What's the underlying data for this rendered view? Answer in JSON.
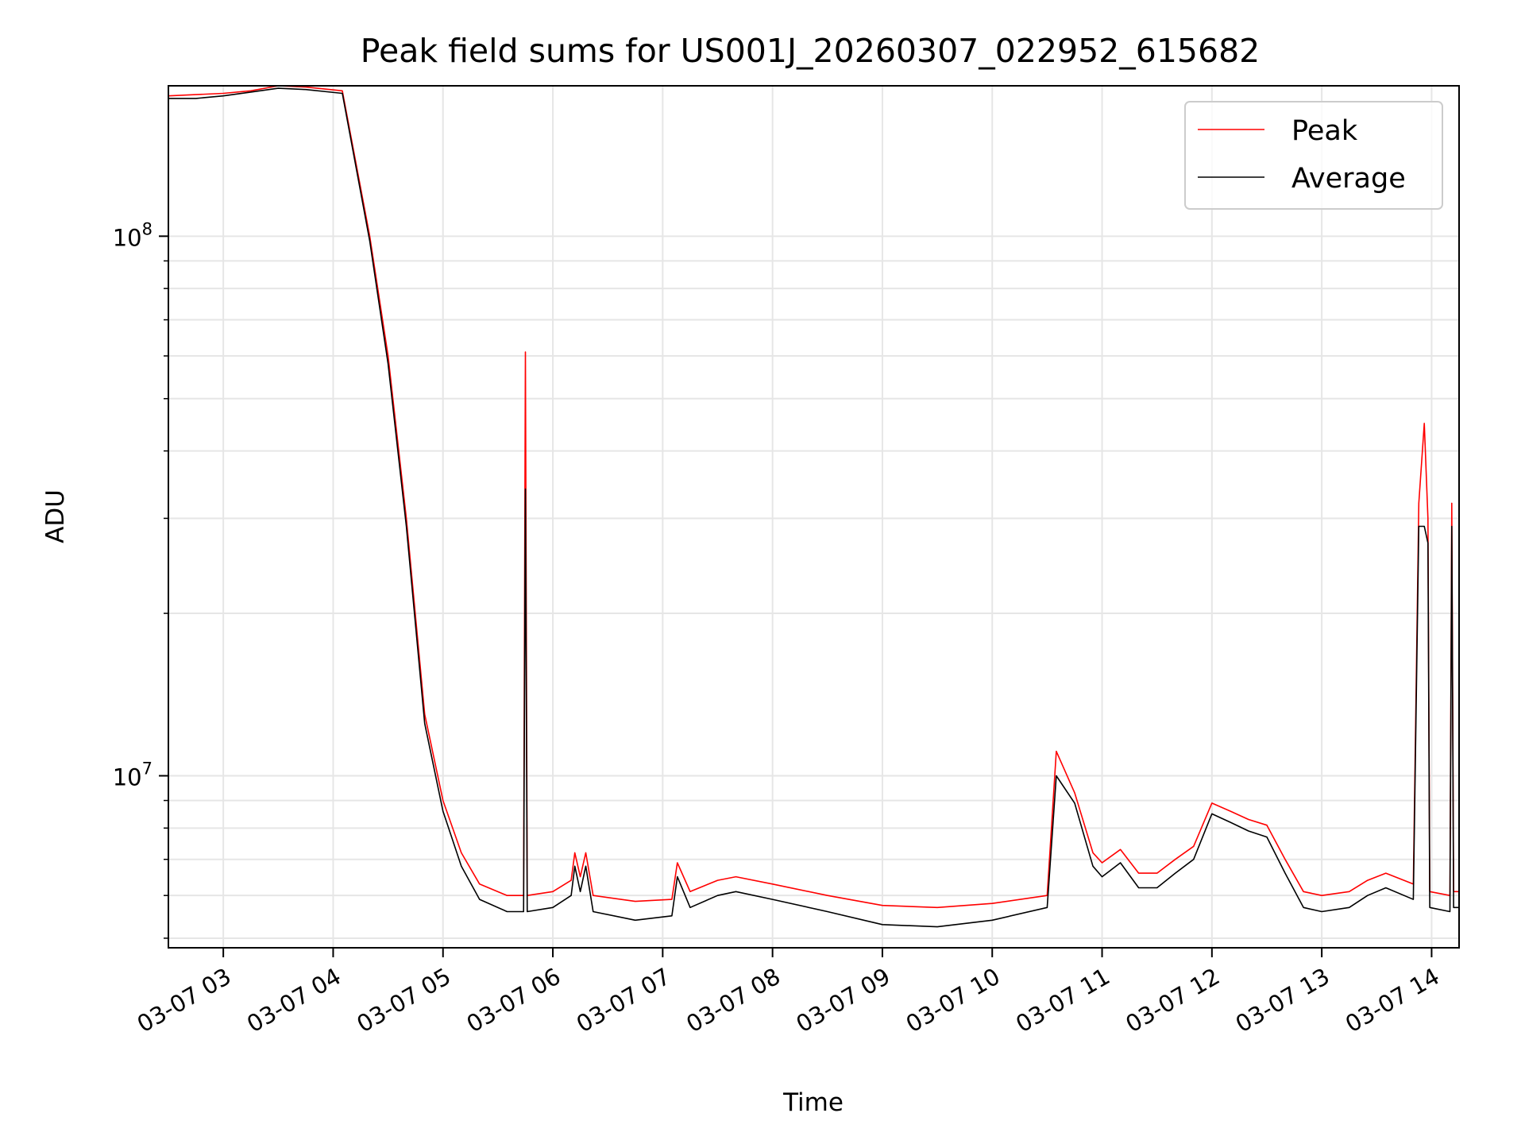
{
  "chart_data": {
    "type": "line",
    "title": "Peak field sums for US001J_20260307_022952_615682",
    "xlabel": "Time",
    "ylabel": "ADU",
    "yscale": "log",
    "xlim": [
      "2026-03-07T02:30",
      "2026-03-07T14:15"
    ],
    "ylim": [
      4800000,
      190000000
    ],
    "x_tick_labels": [
      "03-07 03",
      "03-07 04",
      "03-07 05",
      "03-07 06",
      "03-07 07",
      "03-07 08",
      "03-07 09",
      "03-07 10",
      "03-07 11",
      "03-07 12",
      "03-07 13",
      "03-07 14"
    ],
    "x_tick_values": [
      "2026-03-07T03:00",
      "2026-03-07T04:00",
      "2026-03-07T05:00",
      "2026-03-07T06:00",
      "2026-03-07T07:00",
      "2026-03-07T08:00",
      "2026-03-07T09:00",
      "2026-03-07T10:00",
      "2026-03-07T11:00",
      "2026-03-07T12:00",
      "2026-03-07T13:00",
      "2026-03-07T14:00"
    ],
    "y_major_ticks": [
      {
        "value": 10000000,
        "base": "10",
        "exp": "7"
      },
      {
        "value": 100000000,
        "base": "10",
        "exp": "8"
      }
    ],
    "grid": true,
    "legend_position": "upper right",
    "series": [
      {
        "name": "Peak",
        "color": "#ff0000",
        "points": [
          [
            "2026-03-07T02:30",
            182000000.0
          ],
          [
            "2026-03-07T02:45",
            183000000.0
          ],
          [
            "2026-03-07T03:00",
            184000000.0
          ],
          [
            "2026-03-07T03:15",
            186000000.0
          ],
          [
            "2026-03-07T03:30",
            190000000.0
          ],
          [
            "2026-03-07T03:45",
            189000000.0
          ],
          [
            "2026-03-07T04:05",
            186000000.0
          ],
          [
            "2026-03-07T04:20",
            100000000.0
          ],
          [
            "2026-03-07T04:30",
            60000000.0
          ],
          [
            "2026-03-07T04:40",
            30000000.0
          ],
          [
            "2026-03-07T04:50",
            13000000.0
          ],
          [
            "2026-03-07T05:00",
            9000000.0
          ],
          [
            "2026-03-07T05:10",
            7200000.0
          ],
          [
            "2026-03-07T05:20",
            6300000.0
          ],
          [
            "2026-03-07T05:35",
            6000000.0
          ],
          [
            "2026-03-07T05:44",
            6000000.0
          ],
          [
            "2026-03-07T05:45",
            61000000.0
          ],
          [
            "2026-03-07T05:46",
            6000000.0
          ],
          [
            "2026-03-07T06:00",
            6100000.0
          ],
          [
            "2026-03-07T06:10",
            6400000.0
          ],
          [
            "2026-03-07T06:12",
            7200000.0
          ],
          [
            "2026-03-07T06:15",
            6500000.0
          ],
          [
            "2026-03-07T06:18",
            7200000.0
          ],
          [
            "2026-03-07T06:22",
            6000000.0
          ],
          [
            "2026-03-07T06:45",
            5850000.0
          ],
          [
            "2026-03-07T07:05",
            5900000.0
          ],
          [
            "2026-03-07T07:08",
            6900000.0
          ],
          [
            "2026-03-07T07:15",
            6100000.0
          ],
          [
            "2026-03-07T07:30",
            6400000.0
          ],
          [
            "2026-03-07T07:40",
            6500000.0
          ],
          [
            "2026-03-07T08:00",
            6300000.0
          ],
          [
            "2026-03-07T08:30",
            6000000.0
          ],
          [
            "2026-03-07T09:00",
            5750000.0
          ],
          [
            "2026-03-07T09:30",
            5700000.0
          ],
          [
            "2026-03-07T10:00",
            5800000.0
          ],
          [
            "2026-03-07T10:30",
            6000000.0
          ],
          [
            "2026-03-07T10:35",
            11100000.0
          ],
          [
            "2026-03-07T10:45",
            9300000.0
          ],
          [
            "2026-03-07T10:55",
            7200000.0
          ],
          [
            "2026-03-07T11:00",
            6900000.0
          ],
          [
            "2026-03-07T11:10",
            7300000.0
          ],
          [
            "2026-03-07T11:20",
            6600000.0
          ],
          [
            "2026-03-07T11:30",
            6600000.0
          ],
          [
            "2026-03-07T11:40",
            7000000.0
          ],
          [
            "2026-03-07T11:50",
            7400000.0
          ],
          [
            "2026-03-07T12:00",
            8900000.0
          ],
          [
            "2026-03-07T12:10",
            8600000.0
          ],
          [
            "2026-03-07T12:20",
            8300000.0
          ],
          [
            "2026-03-07T12:30",
            8100000.0
          ],
          [
            "2026-03-07T12:40",
            7000000.0
          ],
          [
            "2026-03-07T12:50",
            6100000.0
          ],
          [
            "2026-03-07T13:00",
            6000000.0
          ],
          [
            "2026-03-07T13:15",
            6100000.0
          ],
          [
            "2026-03-07T13:25",
            6400000.0
          ],
          [
            "2026-03-07T13:35",
            6600000.0
          ],
          [
            "2026-03-07T13:50",
            6300000.0
          ],
          [
            "2026-03-07T13:53",
            32000000.0
          ],
          [
            "2026-03-07T13:56",
            45000000.0
          ],
          [
            "2026-03-07T13:58",
            30000000.0
          ],
          [
            "2026-03-07T13:59",
            6100000.0
          ],
          [
            "2026-03-07T14:10",
            6000000.0
          ],
          [
            "2026-03-07T14:11",
            32000000.0
          ],
          [
            "2026-03-07T14:12",
            6100000.0
          ],
          [
            "2026-03-07T14:15",
            6100000.0
          ]
        ]
      },
      {
        "name": "Average",
        "color": "#000000",
        "points": [
          [
            "2026-03-07T02:30",
            180000000.0
          ],
          [
            "2026-03-07T02:45",
            180000000.0
          ],
          [
            "2026-03-07T03:00",
            182000000.0
          ],
          [
            "2026-03-07T03:15",
            185000000.0
          ],
          [
            "2026-03-07T03:30",
            188000000.0
          ],
          [
            "2026-03-07T03:45",
            187000000.0
          ],
          [
            "2026-03-07T04:05",
            184000000.0
          ],
          [
            "2026-03-07T04:20",
            98000000.0
          ],
          [
            "2026-03-07T04:30",
            58000000.0
          ],
          [
            "2026-03-07T04:40",
            29000000.0
          ],
          [
            "2026-03-07T04:50",
            12500000.0
          ],
          [
            "2026-03-07T05:00",
            8600000.0
          ],
          [
            "2026-03-07T05:10",
            6800000.0
          ],
          [
            "2026-03-07T05:20",
            5900000.0
          ],
          [
            "2026-03-07T05:35",
            5600000.0
          ],
          [
            "2026-03-07T05:44",
            5600000.0
          ],
          [
            "2026-03-07T05:45",
            34000000.0
          ],
          [
            "2026-03-07T05:46",
            5600000.0
          ],
          [
            "2026-03-07T06:00",
            5700000.0
          ],
          [
            "2026-03-07T06:10",
            6000000.0
          ],
          [
            "2026-03-07T06:12",
            6800000.0
          ],
          [
            "2026-03-07T06:15",
            6100000.0
          ],
          [
            "2026-03-07T06:18",
            6800000.0
          ],
          [
            "2026-03-07T06:22",
            5600000.0
          ],
          [
            "2026-03-07T06:45",
            5400000.0
          ],
          [
            "2026-03-07T07:05",
            5500000.0
          ],
          [
            "2026-03-07T07:08",
            6500000.0
          ],
          [
            "2026-03-07T07:15",
            5700000.0
          ],
          [
            "2026-03-07T07:30",
            6000000.0
          ],
          [
            "2026-03-07T07:40",
            6100000.0
          ],
          [
            "2026-03-07T08:00",
            5900000.0
          ],
          [
            "2026-03-07T08:30",
            5600000.0
          ],
          [
            "2026-03-07T09:00",
            5300000.0
          ],
          [
            "2026-03-07T09:30",
            5250000.0
          ],
          [
            "2026-03-07T10:00",
            5400000.0
          ],
          [
            "2026-03-07T10:30",
            5700000.0
          ],
          [
            "2026-03-07T10:35",
            10000000.0
          ],
          [
            "2026-03-07T10:45",
            8900000.0
          ],
          [
            "2026-03-07T10:55",
            6800000.0
          ],
          [
            "2026-03-07T11:00",
            6500000.0
          ],
          [
            "2026-03-07T11:10",
            6900000.0
          ],
          [
            "2026-03-07T11:20",
            6200000.0
          ],
          [
            "2026-03-07T11:30",
            6200000.0
          ],
          [
            "2026-03-07T11:40",
            6600000.0
          ],
          [
            "2026-03-07T11:50",
            7000000.0
          ],
          [
            "2026-03-07T12:00",
            8500000.0
          ],
          [
            "2026-03-07T12:10",
            8200000.0
          ],
          [
            "2026-03-07T12:20",
            7900000.0
          ],
          [
            "2026-03-07T12:30",
            7700000.0
          ],
          [
            "2026-03-07T12:40",
            6600000.0
          ],
          [
            "2026-03-07T12:50",
            5700000.0
          ],
          [
            "2026-03-07T13:00",
            5600000.0
          ],
          [
            "2026-03-07T13:15",
            5700000.0
          ],
          [
            "2026-03-07T13:25",
            6000000.0
          ],
          [
            "2026-03-07T13:35",
            6200000.0
          ],
          [
            "2026-03-07T13:50",
            5900000.0
          ],
          [
            "2026-03-07T13:53",
            29000000.0
          ],
          [
            "2026-03-07T13:56",
            29000000.0
          ],
          [
            "2026-03-07T13:58",
            27000000.0
          ],
          [
            "2026-03-07T13:59",
            5700000.0
          ],
          [
            "2026-03-07T14:10",
            5600000.0
          ],
          [
            "2026-03-07T14:11",
            29000000.0
          ],
          [
            "2026-03-07T14:12",
            5700000.0
          ],
          [
            "2026-03-07T14:15",
            5700000.0
          ]
        ]
      }
    ]
  }
}
